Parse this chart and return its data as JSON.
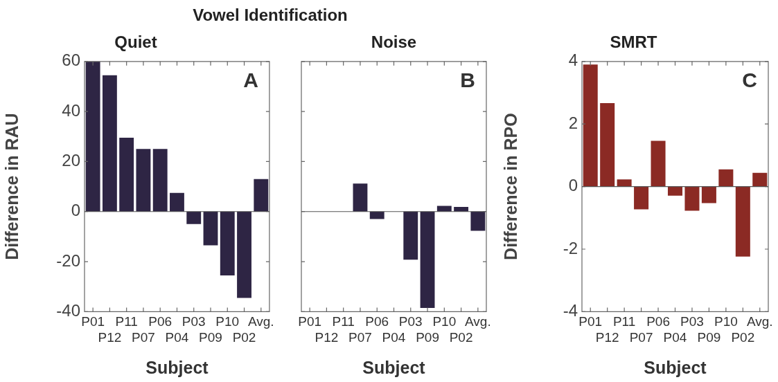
{
  "chart_data": [
    {
      "type": "bar",
      "title": "Vowel Identification",
      "subtitle": "Quiet",
      "xlabel": "Subject",
      "ylabel": "Difference in RAU",
      "categories": [
        "P01",
        "P12",
        "P11",
        "P07",
        "P06",
        "P04",
        "P03",
        "P09",
        "P10",
        "P02",
        "Avg."
      ],
      "values": [
        60,
        54.5,
        29.5,
        25,
        25,
        7.5,
        -5,
        -13.5,
        -25.5,
        -34.5,
        13
      ],
      "color": "#2e2544",
      "ylim": [
        -40,
        60
      ],
      "yticks": [
        -40,
        -20,
        0,
        20,
        40,
        60
      ],
      "annotations": [
        "A"
      ]
    },
    {
      "type": "bar",
      "title": "Noise",
      "xlabel": "Subject",
      "categories": [
        "P01",
        "P12",
        "P11",
        "P07",
        "P06",
        "P04",
        "P03",
        "P09",
        "P10",
        "P02",
        "Avg."
      ],
      "values": [
        0,
        0,
        0,
        11.2,
        -3,
        0,
        -19.2,
        -38.5,
        2.3,
        1.9,
        -7.7
      ],
      "color": "#2e2544",
      "ylim": [
        -40,
        60
      ],
      "yticks": [
        -40,
        -20,
        0,
        20,
        40,
        60
      ],
      "tick_labels": "x",
      "annotations": [
        "B"
      ]
    },
    {
      "type": "bar",
      "title": "SMRT",
      "xlabel": "Subject",
      "ylabel": "Difference in RPO",
      "categories": [
        "P01",
        "P12",
        "P11",
        "P07",
        "P06",
        "P04",
        "P03",
        "P09",
        "P10",
        "P02",
        "Avg."
      ],
      "values": [
        3.9,
        2.67,
        0.23,
        -0.73,
        1.46,
        -0.29,
        -0.77,
        -0.53,
        0.55,
        -2.24,
        0.44
      ],
      "color": "#8b2a24",
      "ylim": [
        -4,
        4
      ],
      "yticks": [
        -4,
        -2,
        0,
        2,
        4
      ],
      "annotations": [
        "C"
      ]
    }
  ]
}
